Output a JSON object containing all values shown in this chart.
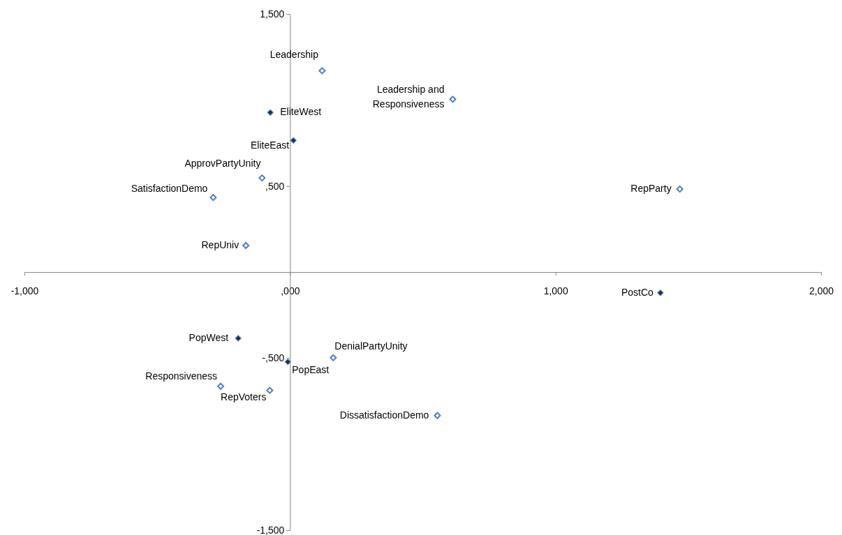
{
  "chart_data": {
    "type": "scatter",
    "marker": "diamond",
    "grid": false,
    "xlim": [
      -1000,
      2000
    ],
    "ylim": [
      -1500,
      1500
    ],
    "xticks": [
      {
        "value": -1000,
        "label": "-1,000"
      },
      {
        "value": 0,
        "label": ",000"
      },
      {
        "value": 1000,
        "label": "1,000"
      },
      {
        "value": 2000,
        "label": "2,000"
      }
    ],
    "yticks": [
      {
        "value": -1500,
        "label": "-1,500"
      },
      {
        "value": -500,
        "label": "-,500"
      },
      {
        "value": 500,
        "label": ",500"
      },
      {
        "value": 1500,
        "label": "1,500"
      }
    ],
    "series": [
      {
        "color": "#4f81bd",
        "x": [
          121,
          613,
          -105,
          -289,
          -166,
          1468,
          163,
          -261,
          -76,
          555
        ],
        "values": [
          1170,
          1004,
          547,
          433,
          154,
          482,
          -498,
          -664,
          -688,
          -834
        ]
      },
      {
        "color": "#1f2a4a",
        "x": [
          -74,
          13,
          -195,
          -8,
          1395
        ],
        "values": [
          927,
          765,
          -385,
          -522,
          -121
        ]
      }
    ],
    "annotations": [
      {
        "text": "Leadership",
        "x": 121,
        "y": 1170
      },
      {
        "text": "Leadership and Responsiveness",
        "x": 613,
        "y": 1004
      },
      {
        "text": "ApprovPartyUnity",
        "x": -105,
        "y": 547
      },
      {
        "text": "SatisfactionDemo",
        "x": -289,
        "y": 433
      },
      {
        "text": "RepUniv",
        "x": -166,
        "y": 154
      },
      {
        "text": "RepParty",
        "x": 1468,
        "y": 482
      },
      {
        "text": "DenialPartyUnity",
        "x": 163,
        "y": -498
      },
      {
        "text": "Responsiveness",
        "x": -261,
        "y": -664
      },
      {
        "text": "RepVoters",
        "x": -76,
        "y": -688
      },
      {
        "text": "DissatisfactionDemo",
        "x": 555,
        "y": -834
      },
      {
        "text": "EliteWest",
        "x": -74,
        "y": 927
      },
      {
        "text": "EliteEast",
        "x": 13,
        "y": 765
      },
      {
        "text": "PopWest",
        "x": -195,
        "y": -385
      },
      {
        "text": "PopEast",
        "x": -8,
        "y": -522
      },
      {
        "text": "PostCo",
        "x": 1395,
        "y": -121
      }
    ]
  }
}
